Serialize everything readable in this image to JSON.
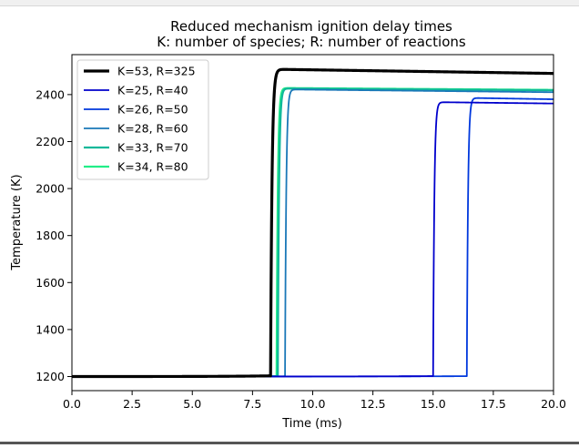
{
  "chart_data": {
    "type": "line",
    "title": "Reduced mechanism ignition delay times",
    "subtitle": "K: number of species; R: number of reactions",
    "xlabel": "Time (ms)",
    "ylabel": "Temperature (K)",
    "xlim": [
      0,
      20
    ],
    "ylim": [
      1140,
      2570
    ],
    "xticks": [
      0,
      2.5,
      5,
      7.5,
      10,
      12.5,
      15,
      17.5,
      20
    ],
    "xtick_labels": [
      "0.0",
      "2.5",
      "5.0",
      "7.5",
      "10.0",
      "12.5",
      "15.0",
      "17.5",
      "20.0"
    ],
    "yticks": [
      1200,
      1400,
      1600,
      1800,
      2000,
      2200,
      2400
    ],
    "ytick_labels": [
      "1200",
      "1400",
      "1600",
      "1800",
      "2000",
      "2200",
      "2400"
    ],
    "grid": false,
    "legend_position": "top-left",
    "series": [
      {
        "name": "K=53, R=325",
        "color": "#000000",
        "width": 3.2,
        "T0": 1200,
        "Tmax": 2508,
        "Tend": 2490,
        "tau": 8.25,
        "a": 3.0,
        "w": 0.06,
        "rate": 0.55
      },
      {
        "name": "K=25, R=40",
        "color": "#0000cc",
        "width": 1.8,
        "T0": 1200,
        "Tmax": 2368,
        "Tend": 2362,
        "tau": 15.0,
        "a": 1.8,
        "w": 0.05,
        "rate": 0.3
      },
      {
        "name": "K=26, R=50",
        "color": "#0038dd",
        "width": 1.8,
        "T0": 1200,
        "Tmax": 2386,
        "Tend": 2380,
        "tau": 16.4,
        "a": 1.6,
        "w": 0.05,
        "rate": 0.3
      },
      {
        "name": "K=28, R=60",
        "color": "#1a78b8",
        "width": 1.8,
        "T0": 1200,
        "Tmax": 2422,
        "Tend": 2410,
        "tau": 8.85,
        "a": 1.2,
        "w": 0.05,
        "rate": 0.4
      },
      {
        "name": "K=33, R=70",
        "color": "#10b89a",
        "width": 2.2,
        "T0": 1200,
        "Tmax": 2426,
        "Tend": 2418,
        "tau": 8.55,
        "a": 1.2,
        "w": 0.05,
        "rate": 0.4
      },
      {
        "name": "K=34, R=80",
        "color": "#22ee88",
        "width": 2.2,
        "T0": 1200,
        "Tmax": 2428,
        "Tend": 2420,
        "tau": 8.5,
        "a": 1.2,
        "w": 0.05,
        "rate": 0.4
      }
    ]
  }
}
